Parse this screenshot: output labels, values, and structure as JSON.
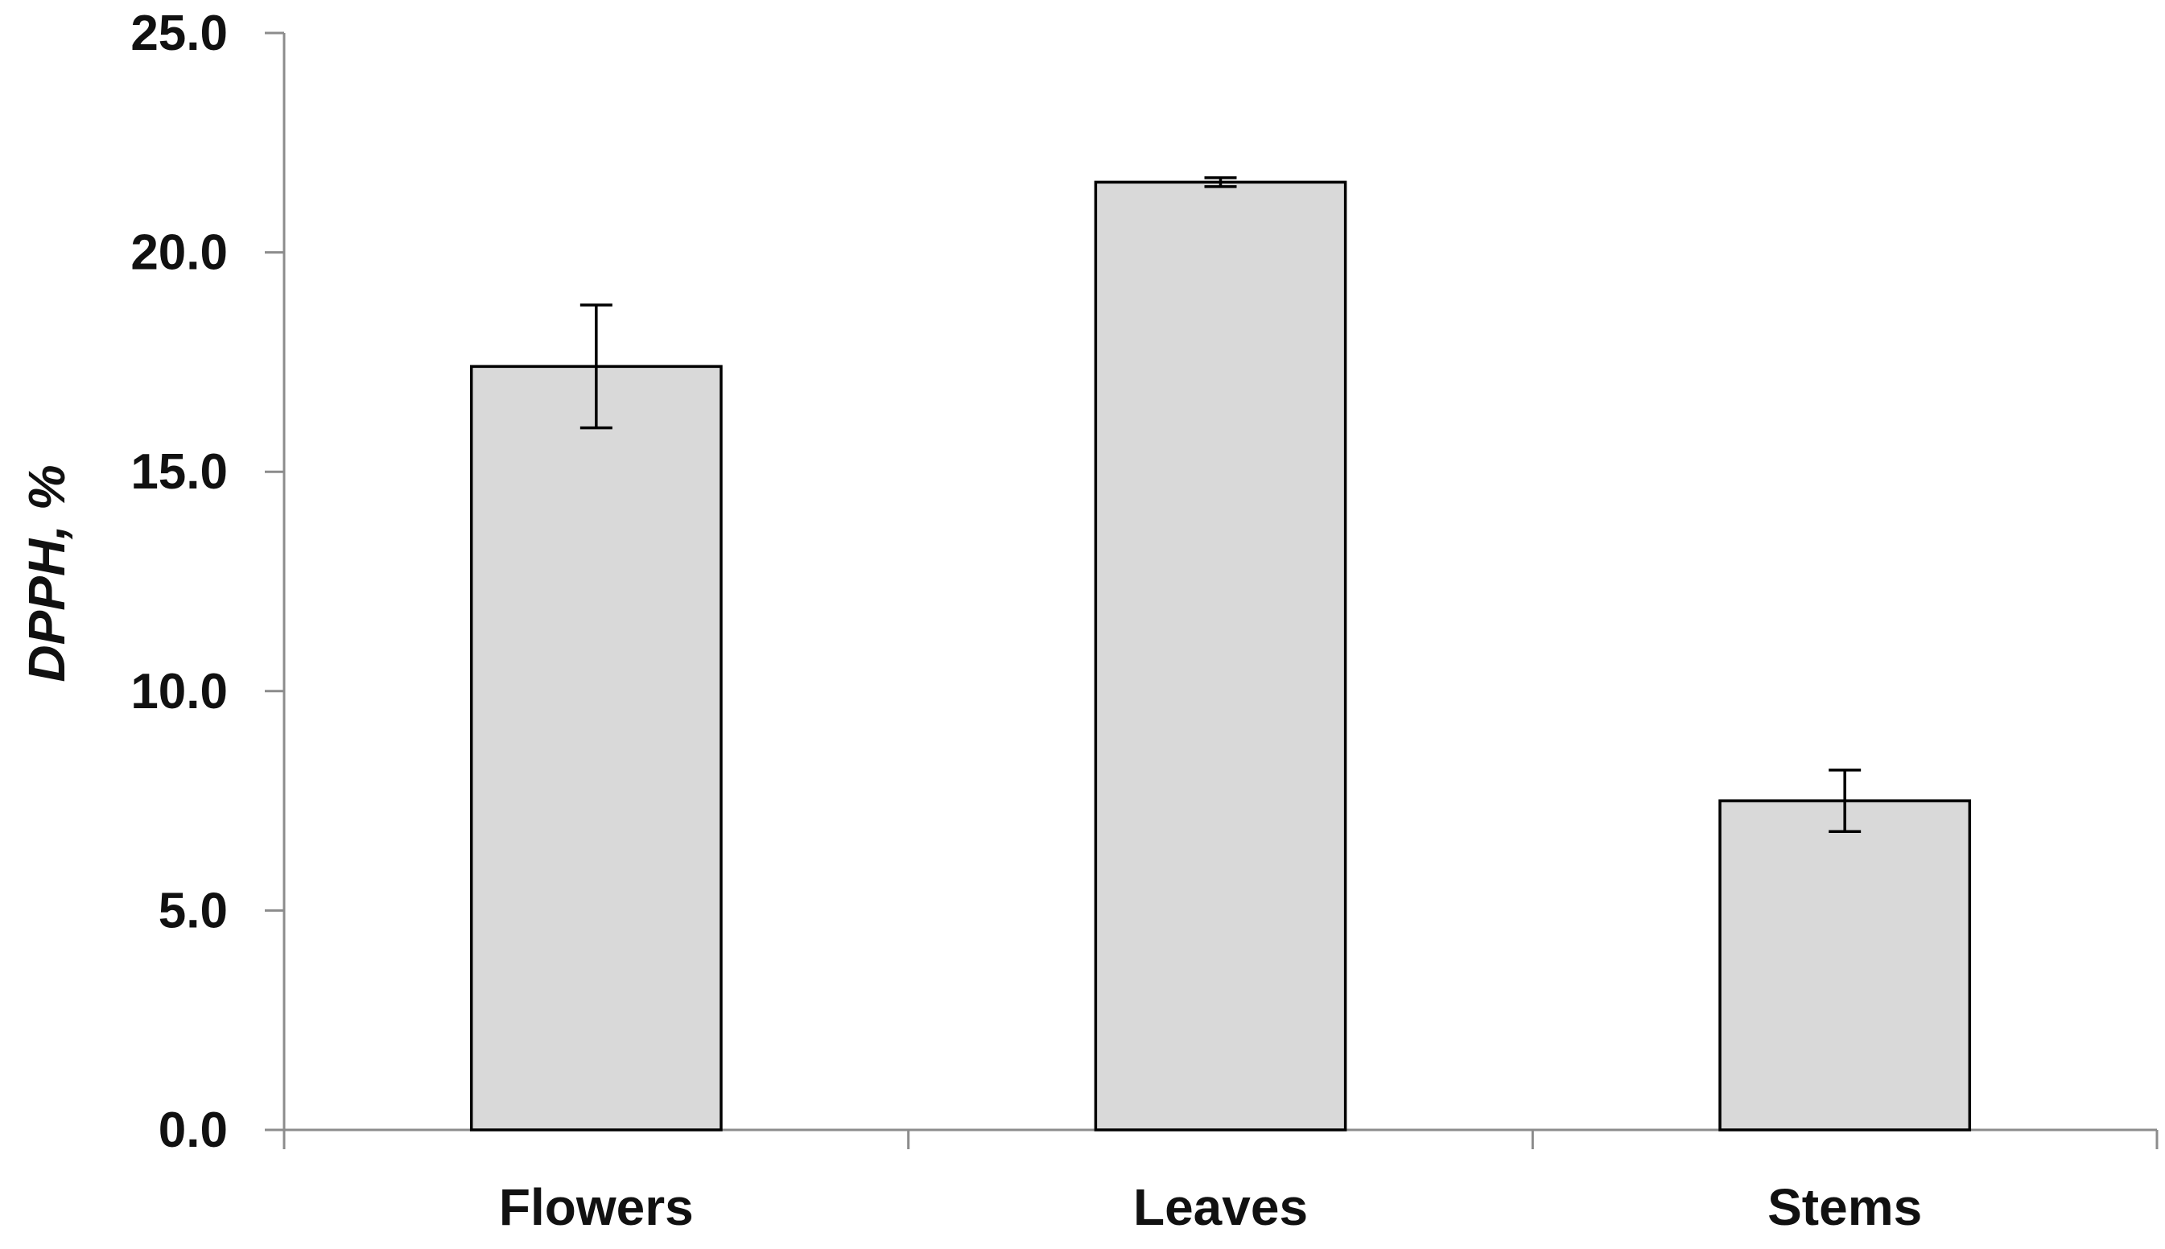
{
  "chart_data": {
    "type": "bar",
    "categories": [
      "Flowers",
      "Leaves",
      "Stems"
    ],
    "values": [
      17.4,
      21.6,
      7.5
    ],
    "errors": [
      1.4,
      0.1,
      0.7
    ],
    "title": "",
    "xlabel": "",
    "ylabel": "DPPH, %",
    "ylim": [
      0,
      25
    ],
    "yticks": [
      "0.0",
      "5.0",
      "10.0",
      "15.0",
      "20.0",
      "25.0"
    ],
    "grid": false,
    "legend": "none",
    "colors": {
      "bar_fill": "#d9d9d9",
      "bar_stroke": "#000000",
      "axis": "#8c8c8c",
      "text": "#111111"
    }
  }
}
